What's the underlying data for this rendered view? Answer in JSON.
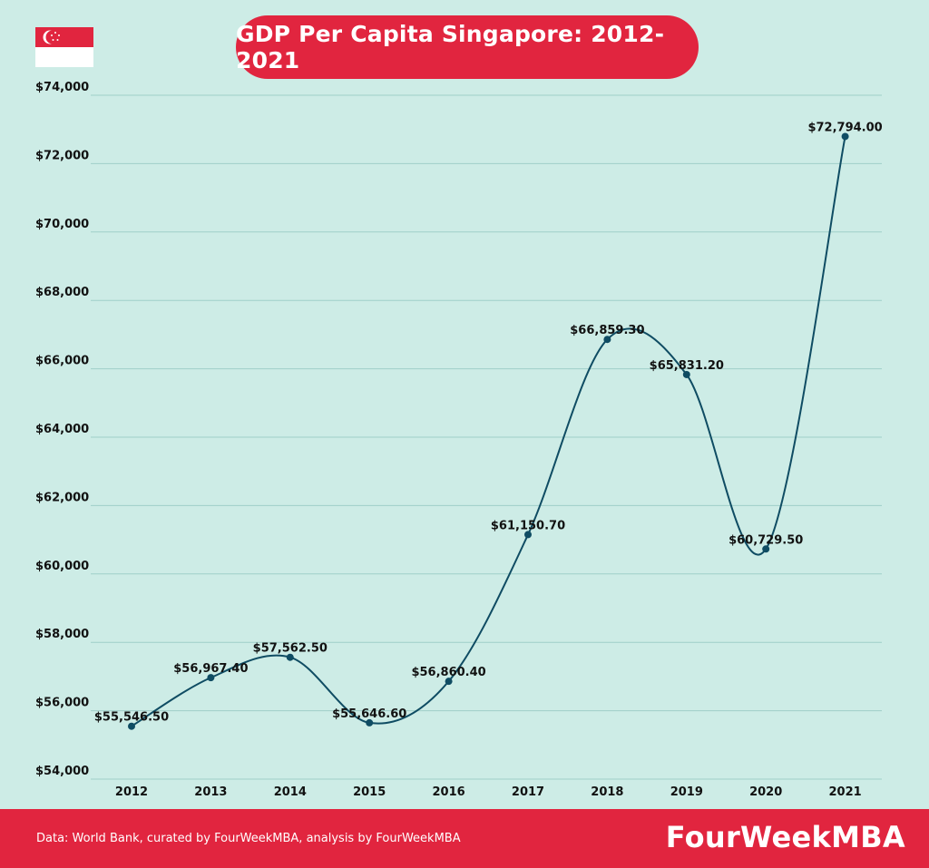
{
  "title": "GDP Per Capita Singapore: 2012-2021",
  "footer": {
    "source": "Data: World Bank, curated by FourWeekMBA, analysis by FourWeekMBA",
    "brand": "FourWeekMBA"
  },
  "colors": {
    "background": "#cdece6",
    "accent": "#e1253f",
    "line": "#0f4c63",
    "grid": "#9fcfc8"
  },
  "chart_data": {
    "type": "line",
    "title": "GDP Per Capita Singapore: 2012-2021",
    "categories": [
      "2012",
      "2013",
      "2014",
      "2015",
      "2016",
      "2017",
      "2018",
      "2019",
      "2020",
      "2021"
    ],
    "series": [
      {
        "values": [
          55546.5,
          56967.4,
          57562.5,
          55646.6,
          56860.4,
          61150.7,
          66859.3,
          65831.2,
          60729.5,
          72794.0
        ],
        "labels": [
          "$55,546.50",
          "$56,967.40",
          "$57,562.50",
          "$55,646.60",
          "$56,860.40",
          "$61,150.70",
          "$66,859.30",
          "$65,831.20",
          "$60,729.50",
          "$72,794.00"
        ]
      }
    ],
    "ylim": [
      54000,
      74000
    ],
    "yticks": [
      54000,
      56000,
      58000,
      60000,
      62000,
      64000,
      66000,
      68000,
      70000,
      72000,
      74000
    ],
    "ytick_labels": [
      "$54,000",
      "$56,000",
      "$58,000",
      "$60,000",
      "$62,000",
      "$64,000",
      "$66,000",
      "$68,000",
      "$70,000",
      "$72,000",
      "$74,000"
    ],
    "grid": true,
    "curve": "smooth"
  }
}
